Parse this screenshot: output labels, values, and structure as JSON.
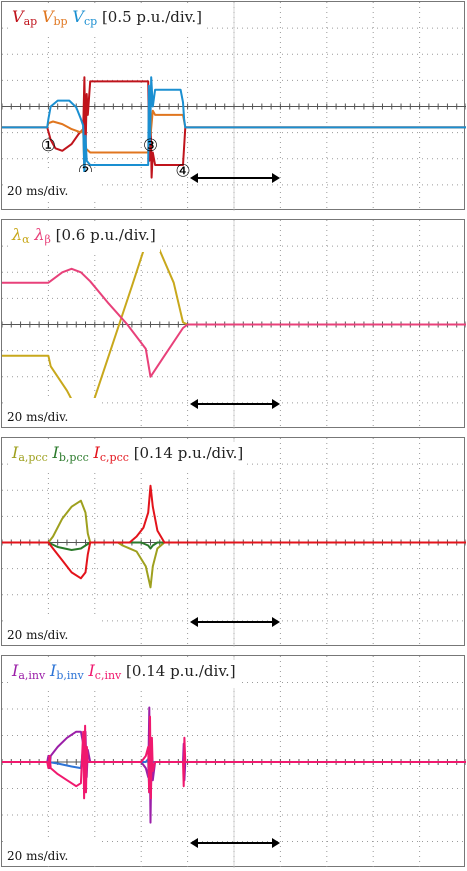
{
  "chart_data": [
    {
      "type": "line",
      "legend": [
        {
          "symbol": "V",
          "sub": "ap",
          "color": "#c0141c"
        },
        {
          "symbol": "V",
          "sub": "bp",
          "color": "#e0761f"
        },
        {
          "symbol": "V",
          "sub": "cp",
          "color": "#1a8fd1"
        }
      ],
      "scale_label": "[0.5 p.u./div.]",
      "time_label": "20 ms/div.",
      "x_units": "ms",
      "y_units": "p.u.",
      "x_range": [
        0,
        200
      ],
      "y_range": [
        -1.25,
        1.25
      ],
      "y_offset": 0.25,
      "markers": [
        {
          "label": "①",
          "x": 20
        },
        {
          "label": "②",
          "x": 36
        },
        {
          "label": "③",
          "x": 64
        },
        {
          "label": "④",
          "x": 78
        }
      ],
      "series": [
        {
          "color": "#c0141c",
          "points": [
            [
              0,
              0
            ],
            [
              19.5,
              0
            ],
            [
              20,
              -0.05
            ],
            [
              21,
              -0.15
            ],
            [
              23,
              -0.25
            ],
            [
              26,
              -0.28
            ],
            [
              30,
              -0.2
            ],
            [
              33,
              -0.08
            ],
            [
              35,
              -0.02
            ],
            [
              35.5,
              0.6
            ],
            [
              36,
              -0.3
            ],
            [
              36.5,
              0.4
            ],
            [
              37,
              0.15
            ],
            [
              38,
              0.55
            ],
            [
              60,
              0.55
            ],
            [
              63,
              0.55
            ],
            [
              63.5,
              -0.4
            ],
            [
              64,
              0.2
            ],
            [
              64.5,
              -0.6
            ],
            [
              65,
              -0.3
            ],
            [
              66,
              -0.45
            ],
            [
              78,
              -0.45
            ],
            [
              79,
              0
            ],
            [
              200,
              0
            ]
          ]
        },
        {
          "color": "#e0761f",
          "points": [
            [
              0,
              0
            ],
            [
              19.5,
              0
            ],
            [
              20,
              0.05
            ],
            [
              22,
              0.07
            ],
            [
              26,
              0.04
            ],
            [
              30,
              -0.02
            ],
            [
              34,
              -0.06
            ],
            [
              35,
              -0.02
            ],
            [
              35.5,
              -0.5
            ],
            [
              36,
              -0.25
            ],
            [
              38,
              -0.3
            ],
            [
              63,
              -0.3
            ],
            [
              63.5,
              0.25
            ],
            [
              64,
              -0.1
            ],
            [
              65,
              0.2
            ],
            [
              66,
              0.15
            ],
            [
              78,
              0.15
            ],
            [
              79,
              0
            ],
            [
              200,
              0
            ]
          ]
        },
        {
          "color": "#1a8fd1",
          "points": [
            [
              0,
              0
            ],
            [
              19.5,
              0
            ],
            [
              20,
              0.1
            ],
            [
              21,
              0.25
            ],
            [
              24,
              0.32
            ],
            [
              29,
              0.32
            ],
            [
              32,
              0.24
            ],
            [
              34,
              0.1
            ],
            [
              35,
              0.02
            ],
            [
              35.5,
              -0.6
            ],
            [
              36,
              -0.1
            ],
            [
              36.5,
              -0.4
            ],
            [
              38,
              -0.45
            ],
            [
              63,
              -0.45
            ],
            [
              63.3,
              0.5
            ],
            [
              63.8,
              -0.2
            ],
            [
              64.3,
              0.6
            ],
            [
              65,
              0.25
            ],
            [
              66,
              0.45
            ],
            [
              77,
              0.45
            ],
            [
              78,
              0.3
            ],
            [
              78.5,
              0.1
            ],
            [
              79,
              0
            ],
            [
              200,
              0
            ]
          ]
        }
      ]
    },
    {
      "type": "line",
      "legend": [
        {
          "symbol": "λ",
          "sub": "α",
          "color": "#c8a81c"
        },
        {
          "symbol": "λ",
          "sub": "β",
          "color": "#e8417a"
        }
      ],
      "scale_label": "[0.6 p.u./div.]",
      "time_label": "20 ms/div.",
      "x_units": "ms",
      "y_units": "p.u.",
      "x_range": [
        0,
        200
      ],
      "y_range": [
        -1.5,
        1.5
      ],
      "y_offset": 0,
      "markers": [],
      "series": [
        {
          "color": "#c8a81c",
          "points": [
            [
              0,
              -0.45
            ],
            [
              20,
              -0.45
            ],
            [
              21,
              -0.6
            ],
            [
              28,
              -0.95
            ],
            [
              32,
              -1.2
            ],
            [
              36,
              -1.37
            ],
            [
              37,
              -1.35
            ],
            [
              47,
              -0.35
            ],
            [
              56,
              0.55
            ],
            [
              64,
              1.37
            ],
            [
              74,
              0.6
            ],
            [
              78,
              0.03
            ],
            [
              80,
              0
            ],
            [
              200,
              0
            ]
          ]
        },
        {
          "color": "#e8417a",
          "points": [
            [
              0,
              0.6
            ],
            [
              20,
              0.6
            ],
            [
              26,
              0.75
            ],
            [
              30,
              0.8
            ],
            [
              34,
              0.75
            ],
            [
              38,
              0.62
            ],
            [
              46,
              0.3
            ],
            [
              54,
              0
            ],
            [
              62,
              -0.35
            ],
            [
              64,
              -0.75
            ],
            [
              70,
              -0.45
            ],
            [
              78,
              -0.05
            ],
            [
              80,
              0
            ],
            [
              200,
              0
            ]
          ]
        }
      ]
    },
    {
      "type": "line",
      "legend": [
        {
          "symbol": "I",
          "sub": "a,pcc",
          "color": "#9ea01e"
        },
        {
          "symbol": "I",
          "sub": "b,pcc",
          "color": "#2b7a2b"
        },
        {
          "symbol": "I",
          "sub": "c,pcc",
          "color": "#e3131b"
        }
      ],
      "scale_label": "[0.14 p.u./div.]",
      "time_label": "20 ms/div.",
      "x_units": "ms",
      "y_units": "p.u.",
      "x_range": [
        0,
        200
      ],
      "y_range": [
        -0.35,
        0.35
      ],
      "y_offset": 0,
      "markers": [],
      "series": [
        {
          "color": "#9ea01e",
          "points": [
            [
              0,
              0
            ],
            [
              20,
              0
            ],
            [
              22,
              0.02
            ],
            [
              26,
              0.08
            ],
            [
              30,
              0.12
            ],
            [
              34,
              0.14
            ],
            [
              36,
              0.1
            ],
            [
              37,
              0.03
            ],
            [
              38,
              0
            ],
            [
              50,
              0
            ],
            [
              52,
              -0.01
            ],
            [
              58,
              -0.03
            ],
            [
              62,
              -0.08
            ],
            [
              64,
              -0.15
            ],
            [
              65,
              -0.08
            ],
            [
              67,
              -0.02
            ],
            [
              70,
              0
            ],
            [
              200,
              0
            ]
          ]
        },
        {
          "color": "#2b7a2b",
          "points": [
            [
              0,
              0
            ],
            [
              20,
              0
            ],
            [
              24,
              -0.015
            ],
            [
              30,
              -0.025
            ],
            [
              34,
              -0.02
            ],
            [
              37,
              -0.005
            ],
            [
              38,
              0
            ],
            [
              60,
              0
            ],
            [
              63,
              -0.01
            ],
            [
              64,
              -0.02
            ],
            [
              65,
              -0.01
            ],
            [
              67,
              0
            ],
            [
              200,
              0
            ]
          ]
        },
        {
          "color": "#e3131b",
          "points": [
            [
              0,
              0
            ],
            [
              20,
              0
            ],
            [
              22,
              -0.02
            ],
            [
              26,
              -0.06
            ],
            [
              30,
              -0.1
            ],
            [
              34,
              -0.12
            ],
            [
              36,
              -0.1
            ],
            [
              37,
              -0.04
            ],
            [
              38,
              0
            ],
            [
              55,
              0
            ],
            [
              58,
              0.02
            ],
            [
              61,
              0.05
            ],
            [
              63,
              0.1
            ],
            [
              64,
              0.19
            ],
            [
              65,
              0.12
            ],
            [
              67,
              0.04
            ],
            [
              70,
              0
            ],
            [
              200,
              0
            ]
          ]
        }
      ]
    },
    {
      "type": "line",
      "legend": [
        {
          "symbol": "I",
          "sub": "a,inv",
          "color": "#9b1fa8"
        },
        {
          "symbol": "I",
          "sub": "b,inv",
          "color": "#2d74d6"
        },
        {
          "symbol": "I",
          "sub": "c,inv",
          "color": "#f0196e"
        }
      ],
      "scale_label": "[0.14 p.u./div.]",
      "time_label": "20 ms/div.",
      "x_units": "ms",
      "y_units": "p.u.",
      "x_range": [
        0,
        200
      ],
      "y_range": [
        -0.35,
        0.35
      ],
      "y_offset": 0,
      "markers": [],
      "series": [
        {
          "color": "#9b1fa8",
          "points": [
            [
              0,
              0
            ],
            [
              19.5,
              0
            ],
            [
              20,
              0.02
            ],
            [
              20.5,
              -0.02
            ],
            [
              21,
              0.02
            ],
            [
              24,
              0.05
            ],
            [
              28,
              0.08
            ],
            [
              32,
              0.1
            ],
            [
              34,
              0.1
            ],
            [
              35,
              0.06
            ],
            [
              36,
              0.1
            ],
            [
              36.5,
              -0.05
            ],
            [
              37,
              0.04
            ],
            [
              38,
              0
            ],
            [
              60,
              0
            ],
            [
              62,
              -0.02
            ],
            [
              63,
              -0.05
            ],
            [
              63.5,
              0.18
            ],
            [
              64,
              -0.2
            ],
            [
              64.5,
              0.05
            ],
            [
              65,
              -0.06
            ],
            [
              66,
              0
            ],
            [
              78,
              0
            ],
            [
              78.3,
              0.06
            ],
            [
              78.6,
              -0.06
            ],
            [
              79,
              0
            ],
            [
              200,
              0
            ]
          ]
        },
        {
          "color": "#2d74d6",
          "points": [
            [
              0,
              0
            ],
            [
              20,
              0
            ],
            [
              24,
              -0.005
            ],
            [
              30,
              -0.015
            ],
            [
              34,
              -0.02
            ],
            [
              35,
              0.05
            ],
            [
              35.5,
              -0.04
            ],
            [
              36,
              0
            ],
            [
              62,
              0
            ],
            [
              63,
              0.01
            ],
            [
              63.5,
              -0.1
            ],
            [
              64,
              0.05
            ],
            [
              65,
              0
            ],
            [
              200,
              0
            ]
          ]
        },
        {
          "color": "#f0196e",
          "points": [
            [
              0,
              0
            ],
            [
              19.5,
              0
            ],
            [
              20,
              -0.02
            ],
            [
              20.5,
              0.02
            ],
            [
              21,
              -0.02
            ],
            [
              24,
              -0.04
            ],
            [
              28,
              -0.06
            ],
            [
              32,
              -0.08
            ],
            [
              34,
              -0.07
            ],
            [
              35,
              0.1
            ],
            [
              35.4,
              -0.12
            ],
            [
              35.8,
              0.12
            ],
            [
              36.2,
              -0.1
            ],
            [
              36.6,
              0.05
            ],
            [
              37,
              0
            ],
            [
              60,
              0
            ],
            [
              62,
              0.02
            ],
            [
              63,
              0.05
            ],
            [
              63.4,
              -0.1
            ],
            [
              63.8,
              0.15
            ],
            [
              64.2,
              -0.12
            ],
            [
              64.6,
              0.08
            ],
            [
              65,
              -0.03
            ],
            [
              66,
              0
            ],
            [
              78,
              0
            ],
            [
              78.3,
              -0.08
            ],
            [
              78.6,
              0.08
            ],
            [
              79,
              0
            ],
            [
              200,
              0
            ]
          ]
        }
      ]
    }
  ]
}
